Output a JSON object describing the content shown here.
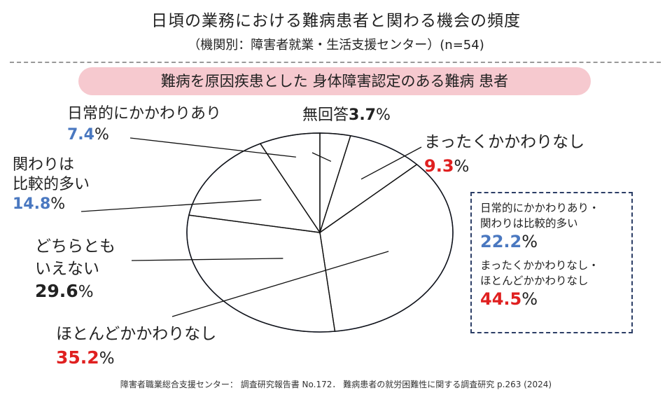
{
  "title": "日頃の業務における難病患者と関わる機会の頻度",
  "subtitle": "（機関別：障害者就業・生活支援センター）(n=54)",
  "category_label": "難病を原因疾患とした 身体障害認定のある難病 患者",
  "colors": {
    "blue": "#4a78c0",
    "red": "#e02020",
    "black": "#222222",
    "pill": "#f6c9cf",
    "box_border": "#2c3e66"
  },
  "labels": [
    {
      "lines": [
        "日常的にかかわりあり"
      ],
      "pct": "7.4",
      "color": "blue"
    },
    {
      "lines": [
        "関わりは",
        "比較的多い"
      ],
      "pct": "14.8",
      "color": "blue"
    },
    {
      "lines": [
        "どちらとも",
        "いえない"
      ],
      "pct": "29.6",
      "color": "black"
    },
    {
      "lines": [
        "ほとんどかかわりなし"
      ],
      "pct": "35.2",
      "color": "red"
    },
    {
      "lines": [
        "まったくかかわりなし"
      ],
      "pct": "9.3",
      "color": "red"
    },
    {
      "lines": [
        "無回答"
      ],
      "pct": "3.7",
      "color": "black"
    }
  ],
  "summary": [
    {
      "lines": [
        "日常的にかかわりあり・",
        "関わりは比較的多い"
      ],
      "pct": "22.2",
      "color": "blue"
    },
    {
      "lines": [
        "まったくかかわりなし・",
        "ほとんどかかわりなし"
      ],
      "pct": "44.5",
      "color": "red"
    }
  ],
  "source": "障害者職業総合支援センター： 調査研究報告書 No.172． 難病患者の就労困難性に関する調査研究 p.263 (2024)",
  "chart_data": {
    "type": "pie",
    "title": "日頃の業務における難病患者と関わる機会の頻度",
    "subtitle": "（機関別：障害者就業・生活支援センター）(n=54)",
    "n": 54,
    "slices": [
      {
        "name": "無回答",
        "value": 3.7
      },
      {
        "name": "まったくかかわりなし",
        "value": 9.3
      },
      {
        "name": "ほとんどかかわりなし",
        "value": 35.2
      },
      {
        "name": "どちらともいえない",
        "value": 29.6
      },
      {
        "name": "関わりは比較的多い",
        "value": 14.8
      },
      {
        "name": "日常的にかかわりあり",
        "value": 7.4
      }
    ],
    "unit": "%"
  }
}
